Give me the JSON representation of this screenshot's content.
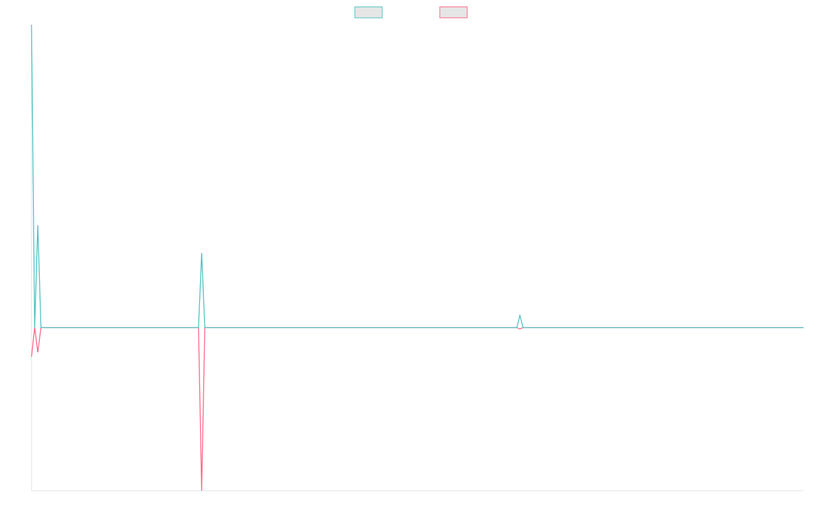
{
  "chart_data": {
    "type": "line",
    "x": [
      0,
      1,
      2,
      3,
      53,
      54,
      55,
      154,
      155,
      156,
      245
    ],
    "xlim": [
      0,
      245
    ],
    "ylim": [
      -35,
      65
    ],
    "series": [
      {
        "color": "#4bc0c0",
        "values": [
          65,
          0,
          22,
          0,
          0,
          16,
          0,
          0,
          2.6,
          0,
          0
        ]
      },
      {
        "color": "#ff6384",
        "values": [
          -6.3,
          0,
          -5.3,
          0,
          0,
          -35,
          0,
          0,
          -0.3,
          0,
          0
        ]
      }
    ],
    "legend": "top"
  }
}
